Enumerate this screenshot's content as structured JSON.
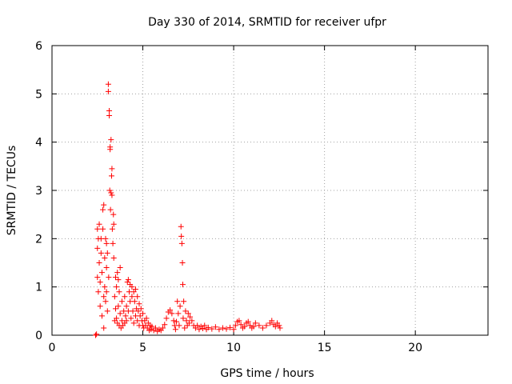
{
  "chart_data": {
    "type": "scatter",
    "title": "Day 330 of 2014, SRMTID for receiver ufpr",
    "xlabel": "GPS time / hours",
    "ylabel": "SRMTID / TECUs",
    "xlim": [
      0,
      24
    ],
    "ylim": [
      0,
      6
    ],
    "xticks": [
      0,
      5,
      10,
      15,
      20
    ],
    "yticks": [
      0,
      1,
      2,
      3,
      4,
      5,
      6
    ],
    "grid": true,
    "marker": "+",
    "color": "#ff0000",
    "series": [
      {
        "name": "SRMTID",
        "points": [
          [
            2.4,
            0.0
          ],
          [
            2.45,
            0.02
          ],
          [
            2.5,
            2.2
          ],
          [
            2.5,
            1.8
          ],
          [
            2.5,
            1.2
          ],
          [
            2.55,
            0.9
          ],
          [
            2.55,
            2.0
          ],
          [
            2.6,
            1.5
          ],
          [
            2.6,
            2.3
          ],
          [
            2.65,
            1.1
          ],
          [
            2.65,
            0.6
          ],
          [
            2.7,
            2.0
          ],
          [
            2.7,
            1.7
          ],
          [
            2.75,
            0.4
          ],
          [
            2.75,
            1.3
          ],
          [
            2.8,
            2.6
          ],
          [
            2.8,
            2.2
          ],
          [
            2.85,
            0.15
          ],
          [
            2.85,
            0.8
          ],
          [
            2.85,
            2.7
          ],
          [
            2.9,
            1.6
          ],
          [
            2.9,
            1.0
          ],
          [
            2.95,
            0.7
          ],
          [
            2.95,
            2.0
          ],
          [
            3.0,
            1.9
          ],
          [
            3.0,
            1.4
          ],
          [
            3.0,
            0.9
          ],
          [
            3.05,
            0.5
          ],
          [
            3.05,
            1.7
          ],
          [
            3.1,
            5.2
          ],
          [
            3.1,
            5.05
          ],
          [
            3.12,
            1.2
          ],
          [
            3.15,
            4.65
          ],
          [
            3.15,
            4.55
          ],
          [
            3.18,
            3.0
          ],
          [
            3.2,
            3.9
          ],
          [
            3.2,
            3.85
          ],
          [
            3.22,
            2.6
          ],
          [
            3.25,
            4.05
          ],
          [
            3.25,
            2.95
          ],
          [
            3.28,
            3.3
          ],
          [
            3.3,
            3.45
          ],
          [
            3.3,
            2.9
          ],
          [
            3.32,
            2.2
          ],
          [
            3.35,
            1.9
          ],
          [
            3.38,
            2.5
          ],
          [
            3.4,
            2.3
          ],
          [
            3.4,
            1.6
          ],
          [
            3.45,
            0.3
          ],
          [
            3.45,
            0.8
          ],
          [
            3.5,
            1.2
          ],
          [
            3.5,
            0.55
          ],
          [
            3.55,
            1.0
          ],
          [
            3.55,
            0.35
          ],
          [
            3.6,
            1.3
          ],
          [
            3.6,
            0.25
          ],
          [
            3.65,
            0.6
          ],
          [
            3.65,
            1.15
          ],
          [
            3.7,
            0.2
          ],
          [
            3.7,
            0.9
          ],
          [
            3.75,
            1.4
          ],
          [
            3.75,
            0.45
          ],
          [
            3.8,
            0.15
          ],
          [
            3.85,
            0.7
          ],
          [
            3.85,
            0.3
          ],
          [
            3.9,
            0.2
          ],
          [
            3.95,
            0.5
          ],
          [
            4.0,
            0.25
          ],
          [
            4.0,
            0.8
          ],
          [
            4.05,
            0.4
          ],
          [
            4.1,
            0.6
          ],
          [
            4.1,
            0.3
          ],
          [
            4.15,
            1.1
          ],
          [
            4.2,
            1.15
          ],
          [
            4.2,
            0.5
          ],
          [
            4.25,
            0.9
          ],
          [
            4.3,
            1.05
          ],
          [
            4.3,
            0.7
          ],
          [
            4.35,
            0.35
          ],
          [
            4.4,
            0.8
          ],
          [
            4.4,
            1.0
          ],
          [
            4.45,
            0.5
          ],
          [
            4.5,
            0.9
          ],
          [
            4.5,
            0.25
          ],
          [
            4.55,
            0.7
          ],
          [
            4.6,
            0.4
          ],
          [
            4.6,
            0.95
          ],
          [
            4.65,
            0.55
          ],
          [
            4.7,
            0.3
          ],
          [
            4.7,
            0.8
          ],
          [
            4.75,
            0.5
          ],
          [
            4.8,
            0.65
          ],
          [
            4.8,
            0.2
          ],
          [
            4.85,
            0.4
          ],
          [
            4.9,
            0.55
          ],
          [
            4.95,
            0.3
          ],
          [
            5.0,
            0.2
          ],
          [
            5.0,
            0.45
          ],
          [
            5.05,
            0.15
          ],
          [
            5.1,
            0.3
          ],
          [
            5.15,
            0.2
          ],
          [
            5.2,
            0.35
          ],
          [
            5.25,
            0.15
          ],
          [
            5.3,
            0.25
          ],
          [
            5.35,
            0.1
          ],
          [
            5.4,
            0.2
          ],
          [
            5.45,
            0.12
          ],
          [
            5.5,
            0.18
          ],
          [
            5.6,
            0.1
          ],
          [
            5.7,
            0.15
          ],
          [
            5.8,
            0.08
          ],
          [
            5.9,
            0.12
          ],
          [
            6.0,
            0.1
          ],
          [
            6.1,
            0.15
          ],
          [
            6.2,
            0.22
          ],
          [
            6.3,
            0.35
          ],
          [
            6.4,
            0.48
          ],
          [
            6.5,
            0.52
          ],
          [
            6.6,
            0.45
          ],
          [
            6.7,
            0.3
          ],
          [
            6.75,
            0.2
          ],
          [
            6.8,
            0.12
          ],
          [
            6.85,
            0.28
          ],
          [
            6.9,
            0.7
          ],
          [
            6.95,
            0.45
          ],
          [
            7.0,
            0.2
          ],
          [
            7.05,
            0.6
          ],
          [
            7.1,
            2.25
          ],
          [
            7.12,
            2.05
          ],
          [
            7.15,
            1.9
          ],
          [
            7.18,
            1.5
          ],
          [
            7.2,
            1.05
          ],
          [
            7.22,
            0.35
          ],
          [
            7.25,
            0.7
          ],
          [
            7.3,
            0.15
          ],
          [
            7.35,
            0.5
          ],
          [
            7.4,
            0.3
          ],
          [
            7.45,
            0.2
          ],
          [
            7.5,
            0.45
          ],
          [
            7.55,
            0.25
          ],
          [
            7.6,
            0.38
          ],
          [
            7.7,
            0.3
          ],
          [
            7.8,
            0.2
          ],
          [
            7.9,
            0.15
          ],
          [
            8.0,
            0.2
          ],
          [
            8.1,
            0.12
          ],
          [
            8.2,
            0.18
          ],
          [
            8.3,
            0.14
          ],
          [
            8.4,
            0.2
          ],
          [
            8.5,
            0.12
          ],
          [
            8.6,
            0.16
          ],
          [
            8.8,
            0.13
          ],
          [
            9.0,
            0.17
          ],
          [
            9.2,
            0.12
          ],
          [
            9.4,
            0.15
          ],
          [
            9.6,
            0.13
          ],
          [
            9.8,
            0.16
          ],
          [
            10.0,
            0.12
          ],
          [
            10.1,
            0.2
          ],
          [
            10.2,
            0.28
          ],
          [
            10.3,
            0.3
          ],
          [
            10.4,
            0.22
          ],
          [
            10.5,
            0.15
          ],
          [
            10.6,
            0.18
          ],
          [
            10.7,
            0.25
          ],
          [
            10.8,
            0.28
          ],
          [
            10.9,
            0.2
          ],
          [
            11.0,
            0.15
          ],
          [
            11.1,
            0.18
          ],
          [
            11.2,
            0.25
          ],
          [
            11.4,
            0.2
          ],
          [
            11.6,
            0.15
          ],
          [
            11.8,
            0.2
          ],
          [
            12.0,
            0.25
          ],
          [
            12.1,
            0.3
          ],
          [
            12.2,
            0.22
          ],
          [
            12.3,
            0.18
          ],
          [
            12.4,
            0.25
          ],
          [
            12.5,
            0.2
          ],
          [
            12.55,
            0.15
          ]
        ]
      }
    ]
  }
}
